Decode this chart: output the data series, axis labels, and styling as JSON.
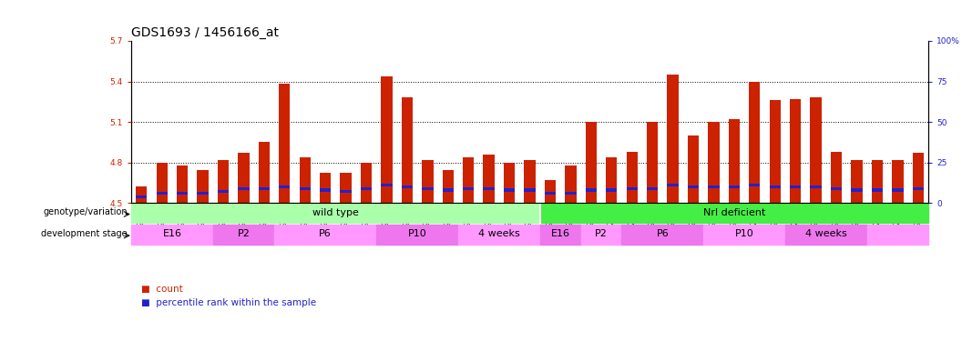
{
  "title": "GDS1693 / 1456166_at",
  "sample_ids": [
    "GSM92633",
    "GSM92634",
    "GSM92635",
    "GSM92636",
    "GSM92641",
    "GSM92642",
    "GSM92643",
    "GSM92644",
    "GSM92645",
    "GSM92646",
    "GSM92647",
    "GSM92648",
    "GSM92637",
    "GSM92638",
    "GSM92639",
    "GSM92640",
    "GSM92629",
    "GSM92630",
    "GSM92631",
    "GSM92632",
    "GSM92614",
    "GSM92615",
    "GSM92616",
    "GSM92621",
    "GSM92622",
    "GSM92623",
    "GSM92624",
    "GSM92625",
    "GSM92626",
    "GSM92627",
    "GSM92628",
    "GSM92617",
    "GSM92618",
    "GSM92619",
    "GSM92620",
    "GSM92610",
    "GSM92611",
    "GSM92612",
    "GSM92613"
  ],
  "count_values": [
    4.62,
    4.8,
    4.78,
    4.74,
    4.82,
    4.87,
    4.95,
    5.38,
    4.84,
    4.72,
    4.72,
    4.8,
    5.44,
    5.28,
    4.82,
    4.74,
    4.84,
    4.86,
    4.8,
    4.82,
    4.67,
    4.78,
    5.1,
    4.84,
    4.88,
    5.1,
    5.45,
    5.0,
    5.1,
    5.12,
    5.4,
    5.26,
    5.27,
    5.28,
    4.88,
    4.82,
    4.82,
    4.82,
    4.87
  ],
  "percentile_values": [
    3,
    5,
    5,
    5,
    6,
    8,
    8,
    9,
    8,
    7,
    6,
    8,
    10,
    9,
    8,
    7,
    8,
    8,
    7,
    7,
    5,
    5,
    7,
    7,
    8,
    8,
    10,
    9,
    9,
    9,
    10,
    9,
    9,
    9,
    8,
    7,
    7,
    7,
    8
  ],
  "ymin": 4.5,
  "ymax": 5.7,
  "yticks": [
    4.5,
    4.8,
    5.1,
    5.4,
    5.7
  ],
  "ytick_labels": [
    "4.5",
    "4.8",
    "5.1",
    "5.4",
    "5.7"
  ],
  "right_yticks": [
    0,
    25,
    50,
    75,
    100
  ],
  "right_ytick_labels": [
    "0",
    "25",
    "50",
    "75",
    "100%"
  ],
  "bar_color": "#CC2200",
  "percentile_color": "#2222CC",
  "bar_width": 0.55,
  "genotype_groups": [
    {
      "label": "wild type",
      "start": 0,
      "end": 20,
      "color": "#AAFFAA"
    },
    {
      "label": "Nrl deficient",
      "start": 20,
      "end": 39,
      "color": "#44EE44"
    }
  ],
  "stage_data": [
    {
      "label": "E16",
      "start": 0,
      "end": 4,
      "color": "#FF99FF"
    },
    {
      "label": "P2",
      "start": 4,
      "end": 7,
      "color": "#EE77EE"
    },
    {
      "label": "P6",
      "start": 7,
      "end": 12,
      "color": "#FF99FF"
    },
    {
      "label": "P10",
      "start": 12,
      "end": 16,
      "color": "#EE77EE"
    },
    {
      "label": "4 weeks",
      "start": 16,
      "end": 20,
      "color": "#FF99FF"
    },
    {
      "label": "E16",
      "start": 20,
      "end": 22,
      "color": "#EE77EE"
    },
    {
      "label": "P2",
      "start": 22,
      "end": 24,
      "color": "#FF99FF"
    },
    {
      "label": "P6",
      "start": 24,
      "end": 28,
      "color": "#EE77EE"
    },
    {
      "label": "P10",
      "start": 28,
      "end": 32,
      "color": "#FF99FF"
    },
    {
      "label": "4 weeks",
      "start": 32,
      "end": 36,
      "color": "#EE77EE"
    },
    {
      "label": "",
      "start": 36,
      "end": 39,
      "color": "#FF99FF"
    }
  ],
  "grid_color": "#000000",
  "bg_color": "#FFFFFF",
  "left_label_color": "#CC2200",
  "right_label_color": "#2222CC",
  "title_fontsize": 10,
  "tick_fontsize": 6.5,
  "xtick_fontsize": 5.5,
  "label_fontsize": 8
}
